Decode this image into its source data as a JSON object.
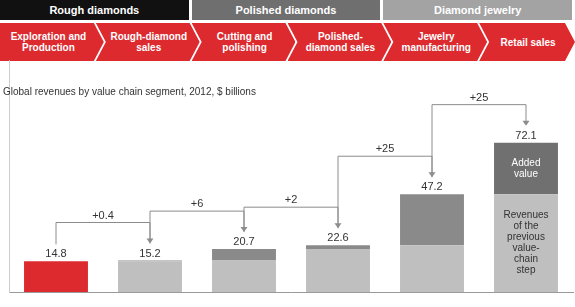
{
  "chart_data": {
    "type": "bar",
    "subtitle": "Global revenues by value chain segment, 2012, $ billions",
    "groups": [
      {
        "label": "Rough diamonds",
        "span": 2
      },
      {
        "label": "Polished diamonds",
        "span": 2
      },
      {
        "label": "Diamond jewelry",
        "span": 2
      }
    ],
    "categories": [
      "Exploration and Production",
      "Rough-diamond sales",
      "Cutting and polishing",
      "Polished-diamond sales",
      "Jewelry manufacturing",
      "Retail sales"
    ],
    "series": [
      {
        "name": "Revenues of the previous value-chain step",
        "color": "#bfbfbf",
        "values": [
          null,
          14.8,
          15.2,
          20.7,
          22.6,
          47.2
        ]
      },
      {
        "name": "Added value",
        "colors": [
          "#dd2a2f",
          "#8a8a8a",
          "#8a8a8a",
          "#8a8a8a",
          "#8a8a8a",
          "#707070"
        ],
        "values": [
          14.8,
          0.4,
          5.5,
          1.9,
          24.6,
          24.9
        ],
        "value_labels": [
          null,
          "+0.4",
          "+6",
          "+2",
          "+25",
          "+25"
        ]
      }
    ],
    "totals": [
      14.8,
      15.2,
      20.7,
      22.6,
      47.2,
      72.1
    ],
    "stacked": true,
    "ylim": [
      0,
      112
    ],
    "grid": false,
    "tick_labels": false
  }
}
